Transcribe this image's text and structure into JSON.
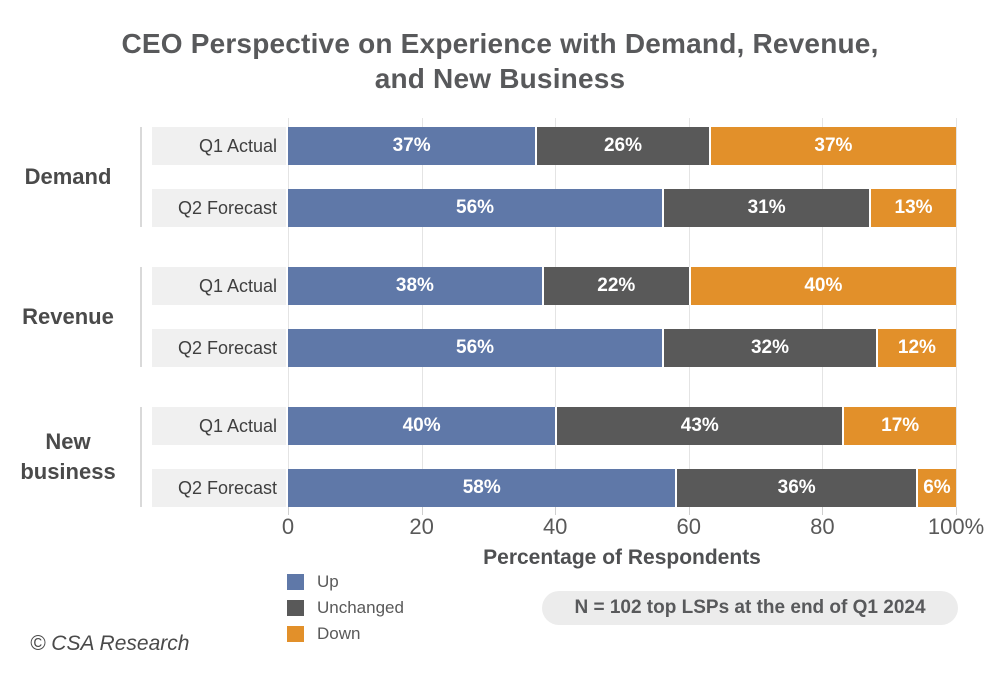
{
  "title": {
    "line1": "CEO Perspective on Experience with Demand, Revenue,",
    "line2": "and New Business"
  },
  "chart_data": {
    "type": "bar",
    "orientation": "horizontal",
    "stacked": true,
    "title": "CEO Perspective on Experience with Demand, Revenue, and New Business",
    "xlabel": "Percentage of Respondents",
    "xlim": [
      0,
      100
    ],
    "x_ticks": [
      "0",
      "20",
      "40",
      "60",
      "80",
      "100%"
    ],
    "grid": "vertical",
    "legend_position": "bottom-left",
    "series": [
      {
        "name": "Up",
        "color": "#5f78a8"
      },
      {
        "name": "Unchanged",
        "color": "#595959"
      },
      {
        "name": "Down",
        "color": "#e2902a"
      }
    ],
    "groups": [
      {
        "label": "Demand",
        "rows": [
          {
            "label": "Q1 Actual",
            "values": [
              37,
              26,
              37
            ],
            "value_labels": [
              "37%",
              "26%",
              "37%"
            ]
          },
          {
            "label": "Q2 Forecast",
            "values": [
              56,
              31,
              13
            ],
            "value_labels": [
              "56%",
              "31%",
              "13%"
            ]
          }
        ]
      },
      {
        "label": "Revenue",
        "rows": [
          {
            "label": "Q1 Actual",
            "values": [
              38,
              22,
              40
            ],
            "value_labels": [
              "38%",
              "22%",
              "40%"
            ]
          },
          {
            "label": "Q2 Forecast",
            "values": [
              56,
              32,
              12
            ],
            "value_labels": [
              "56%",
              "32%",
              "12%"
            ]
          }
        ]
      },
      {
        "label": "New business",
        "rows": [
          {
            "label": "Q1 Actual",
            "values": [
              40,
              43,
              17
            ],
            "value_labels": [
              "40%",
              "43%",
              "17%"
            ]
          },
          {
            "label": "Q2 Forecast",
            "values": [
              58,
              36,
              6
            ],
            "value_labels": [
              "58%",
              "36%",
              "6%"
            ]
          }
        ]
      }
    ]
  },
  "note": "N = 102 top LSPs at the end of Q1 2024",
  "footer": "© CSA Research",
  "colors": {
    "up": "#5f78a8",
    "unchanged": "#595959",
    "down": "#e2902a",
    "title_text": "#58595b",
    "row_label_bg": "#f0f0f0",
    "gridline": "#e4e4e4",
    "note_bg": "#ececec"
  }
}
